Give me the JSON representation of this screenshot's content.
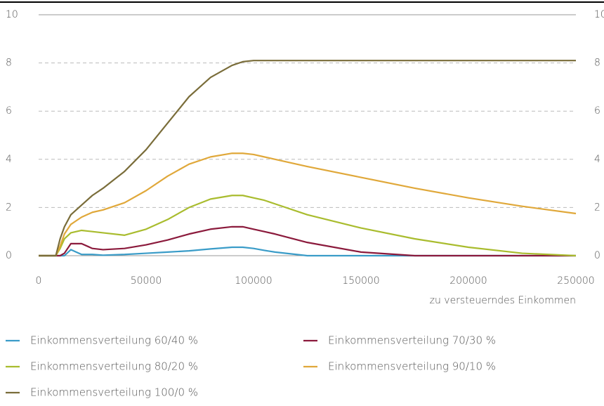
{
  "chart_data": {
    "type": "line",
    "x_label": "zu versteuerndes Einkommen",
    "x": [
      0,
      5000,
      8000,
      10000,
      12000,
      15000,
      17500,
      20000,
      25000,
      30000,
      40000,
      50000,
      60000,
      70000,
      80000,
      90000,
      95000,
      100000,
      105000,
      110000,
      125000,
      150000,
      175000,
      200000,
      225000,
      250000
    ],
    "series": [
      {
        "name": "Einkommensverteilung 60/40 %",
        "color": "#3a9cc8",
        "values": [
          0,
          0,
          0,
          0,
          0,
          0.25,
          0.15,
          0.05,
          0.05,
          0.02,
          0.05,
          0.1,
          0.15,
          0.2,
          0.28,
          0.35,
          0.35,
          0.3,
          0.22,
          0.15,
          0,
          0,
          0,
          0,
          0,
          0
        ]
      },
      {
        "name": "Einkommensverteilung 70/30 %",
        "color": "#8b1a3c",
        "values": [
          0,
          0,
          0,
          0,
          0.1,
          0.5,
          0.5,
          0.5,
          0.3,
          0.25,
          0.3,
          0.45,
          0.65,
          0.9,
          1.1,
          1.2,
          1.2,
          1.1,
          1.0,
          0.9,
          0.55,
          0.15,
          0,
          0,
          0,
          0
        ]
      },
      {
        "name": "Einkommensverteilung 80/20 %",
        "color": "#a9bc2e",
        "values": [
          0,
          0,
          0,
          0.3,
          0.7,
          0.95,
          1.0,
          1.05,
          1.0,
          0.95,
          0.85,
          1.1,
          1.5,
          2.0,
          2.35,
          2.5,
          2.5,
          2.4,
          2.3,
          2.15,
          1.7,
          1.15,
          0.7,
          0.35,
          0.1,
          0
        ]
      },
      {
        "name": "Einkommensverteilung 90/10 %",
        "color": "#e0a83a",
        "values": [
          0,
          0,
          0,
          0.4,
          0.9,
          1.3,
          1.45,
          1.6,
          1.8,
          1.9,
          2.2,
          2.7,
          3.3,
          3.8,
          4.1,
          4.25,
          4.25,
          4.2,
          4.1,
          4.0,
          3.7,
          3.25,
          2.8,
          2.4,
          2.05,
          1.75
        ]
      },
      {
        "name": "Einkommensverteilung 100/0 %",
        "color": "#7a6d3a",
        "values": [
          0,
          0,
          0,
          0.7,
          1.2,
          1.7,
          1.9,
          2.1,
          2.5,
          2.8,
          3.5,
          4.4,
          5.5,
          6.6,
          7.4,
          7.9,
          8.05,
          8.1,
          8.1,
          8.1,
          8.1,
          8.1,
          8.1,
          8.1,
          8.1,
          8.1
        ]
      }
    ],
    "xlim": [
      0,
      250000
    ],
    "xticks": [
      0,
      50000,
      100000,
      150000,
      200000,
      250000
    ],
    "ylim": [
      0,
      10
    ],
    "yticks": [
      0,
      2,
      4,
      6,
      8,
      10
    ],
    "grid": true
  }
}
